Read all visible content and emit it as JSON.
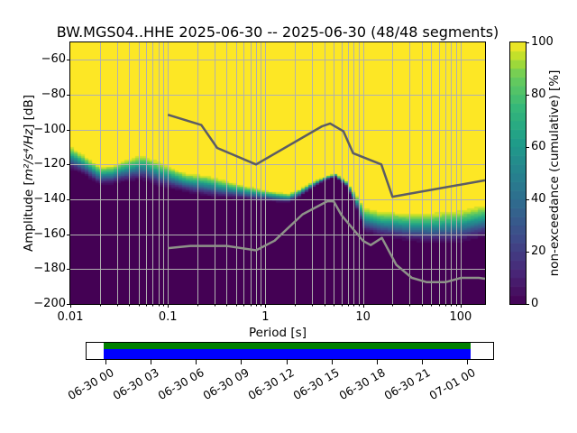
{
  "title": "BW.MGS04..HHE   2025-06-30 -- 2025-06-30  (48/48 segments)",
  "axes": {
    "xlabel": "Period [s]",
    "ylabel_prefix": "Amplitude [",
    "ylabel_math": "m²/s⁴/Hz",
    "ylabel_suffix": "] [dB]",
    "x_ticks": [
      {
        "value": 0.01,
        "label": "0.01"
      },
      {
        "value": 0.1,
        "label": "0.1"
      },
      {
        "value": 1,
        "label": "1"
      },
      {
        "value": 10,
        "label": "10"
      },
      {
        "value": 100,
        "label": "100"
      }
    ],
    "y_ticks": [
      {
        "value": -60,
        "label": "−60"
      },
      {
        "value": -80,
        "label": "−80"
      },
      {
        "value": -100,
        "label": "−100"
      },
      {
        "value": -120,
        "label": "−120"
      },
      {
        "value": -140,
        "label": "−140"
      },
      {
        "value": -160,
        "label": "−160"
      },
      {
        "value": -180,
        "label": "−180"
      },
      {
        "value": -200,
        "label": "−200"
      }
    ]
  },
  "colorbar": {
    "label": "non-exceedance (cumulative) [%]",
    "ticks": [
      0,
      20,
      40,
      60,
      80,
      100
    ],
    "steps": 30
  },
  "chart_data": {
    "type": "heatmap",
    "title": "BW.MGS04..HHE   2025-06-30 -- 2025-06-30  (48/48 segments)",
    "xlabel": "Period [s]",
    "ylabel": "Amplitude [m^2/s^4/Hz] [dB]",
    "xscale": "log",
    "xlim": [
      0.01,
      178
    ],
    "ylim": [
      -200,
      -50
    ],
    "grid": true,
    "grid_color": "#b0b0b0",
    "value_label": "non-exceedance (cumulative) [%]",
    "value_range": [
      0,
      100
    ],
    "colormap": "viridis",
    "viridis_anchors": [
      [
        0.0,
        "#440154"
      ],
      [
        0.125,
        "#482878"
      ],
      [
        0.25,
        "#3e4a89"
      ],
      [
        0.375,
        "#31688e"
      ],
      [
        0.5,
        "#26828e"
      ],
      [
        0.625,
        "#1f9e89"
      ],
      [
        0.75,
        "#35b779"
      ],
      [
        0.875,
        "#6dcd59"
      ],
      [
        0.9375,
        "#b5de2b"
      ],
      [
        1.0,
        "#fde725"
      ]
    ],
    "quantize_levels": 26,
    "cumulative_band_note": "per period: dB where cumulative reaches 100% (top) and 0% (bottom)",
    "cumulative_band": [
      {
        "period": 0.01,
        "db_top": -108.4,
        "db_bot": -124.0
      },
      {
        "period": 0.014,
        "db_top": -114.1,
        "db_bot": -127.1
      },
      {
        "period": 0.02,
        "db_top": -120.3,
        "db_bot": -132.8
      },
      {
        "period": 0.027,
        "db_top": -119.8,
        "db_bot": -132.3
      },
      {
        "period": 0.035,
        "db_top": -116.7,
        "db_bot": -131.2
      },
      {
        "period": 0.055,
        "db_top": -113.1,
        "db_bot": -130.2
      },
      {
        "period": 0.08,
        "db_top": -117.2,
        "db_bot": -133.8
      },
      {
        "period": 0.1,
        "db_top": -119.8,
        "db_bot": -134.8
      },
      {
        "period": 0.15,
        "db_top": -124.0,
        "db_bot": -136.9
      },
      {
        "period": 0.26,
        "db_top": -125.5,
        "db_bot": -139.5
      },
      {
        "period": 0.5,
        "db_top": -130.2,
        "db_bot": -140.5
      },
      {
        "period": 1.0,
        "db_top": -134.3,
        "db_bot": -141.6
      },
      {
        "period": 1.7,
        "db_top": -136.4,
        "db_bot": -142.6
      },
      {
        "period": 2.2,
        "db_top": -134.0,
        "db_bot": -139.5
      },
      {
        "period": 2.8,
        "db_top": -130.7,
        "db_bot": -135.3
      },
      {
        "period": 3.5,
        "db_top": -128.3,
        "db_bot": -131.7
      },
      {
        "period": 4.2,
        "db_top": -126.6,
        "db_bot": -129.1
      },
      {
        "period": 5.2,
        "db_top": -125.0,
        "db_bot": -127.6
      },
      {
        "period": 6.7,
        "db_top": -129.1,
        "db_bot": -132.8
      },
      {
        "period": 8.3,
        "db_top": -135.9,
        "db_bot": -143.6
      },
      {
        "period": 10.3,
        "db_top": -143.6,
        "db_bot": -160.2
      },
      {
        "period": 15.0,
        "db_top": -145.7,
        "db_bot": -162.8
      },
      {
        "period": 21.0,
        "db_top": -146.2,
        "db_bot": -163.9
      },
      {
        "period": 30.0,
        "db_top": -146.7,
        "db_bot": -165.4
      },
      {
        "period": 50.0,
        "db_top": -146.2,
        "db_bot": -166.9
      },
      {
        "period": 100.0,
        "db_top": -144.7,
        "db_bot": -166.4
      },
      {
        "period": 178.0,
        "db_top": -141.6,
        "db_bot": -163.3
      }
    ],
    "noise_models": {
      "nhnm_color": "#5c5c64",
      "nlnm_color": "#8e9289",
      "nhnm": [
        [
          0.1,
          -91.5
        ],
        [
          0.22,
          -97.4
        ],
        [
          0.32,
          -110.5
        ],
        [
          0.8,
          -120.0
        ],
        [
          3.8,
          -98.1
        ],
        [
          4.6,
          -96.5
        ],
        [
          6.3,
          -101.0
        ],
        [
          7.9,
          -113.5
        ],
        [
          15.4,
          -120.0
        ],
        [
          20.0,
          -138.5
        ],
        [
          178,
          -129.1
        ]
      ],
      "nlnm": [
        [
          0.1,
          -168.0
        ],
        [
          0.17,
          -166.7
        ],
        [
          0.4,
          -166.7
        ],
        [
          0.8,
          -169.2
        ],
        [
          1.24,
          -163.7
        ],
        [
          2.4,
          -148.6
        ],
        [
          4.3,
          -141.1
        ],
        [
          5.0,
          -141.1
        ],
        [
          6.0,
          -149.0
        ],
        [
          10.0,
          -163.8
        ],
        [
          12.0,
          -166.2
        ],
        [
          15.6,
          -162.1
        ],
        [
          21.9,
          -177.5
        ],
        [
          31.6,
          -185.0
        ],
        [
          45.0,
          -187.5
        ],
        [
          70.0,
          -187.5
        ],
        [
          101.0,
          -185.0
        ],
        [
          154.0,
          -185.0
        ],
        [
          178.0,
          -185.5
        ]
      ]
    }
  },
  "timeline": {
    "tick_labels": [
      "06-30 00",
      "06-30 03",
      "06-30 06",
      "06-30 09",
      "06-30 12",
      "06-30 15",
      "06-30 18",
      "06-30 21",
      "07-01 00"
    ],
    "coverage_color": "#008000",
    "data_color": "#0000ff",
    "coverage_start_frac": -0.0025,
    "coverage_end_frac": 1.0125
  }
}
